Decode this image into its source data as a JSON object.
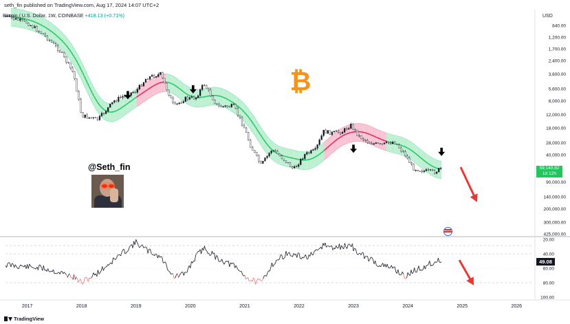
{
  "header": {
    "published": "seth_fin published on TradingView.com, Aug 17, 2024 14:07 UTC+2",
    "symbol": "Bitcoin / U.S. Dollar, 1W, COINBASE",
    "change": "+418.13 (+0.71%)"
  },
  "brand": "TradingView",
  "handle": "@Seth_fin",
  "colors": {
    "candle": "#131722",
    "band_green": "#22c55e",
    "band_green_fill": "#bdf0d2",
    "band_red": "#e0245e",
    "band_red_fill": "#f8c3d3",
    "bitcoin": "#f7931a",
    "arrow_red": "#e53935",
    "rsi_line": "#131722",
    "rsi_low": "#e57373",
    "price_label": "#22c55e"
  },
  "icons": [
    "bitcoin-logo-icon",
    "down-arrow-icon",
    "red-forecast-arrow-icon",
    "flag-icon",
    "tradingview-logo-icon"
  ],
  "chart_data": [
    {
      "type": "line",
      "title": "",
      "xlabel": "",
      "ylabel": "USD",
      "y_inverted": true,
      "y_scale": "log",
      "ylim": [
        425000,
        700
      ],
      "x_ticks": [
        "2017",
        "2018",
        "2019",
        "2020",
        "2021",
        "2022",
        "2023",
        "2024",
        "2025",
        "2026"
      ],
      "y_ticks": [
        "840.00",
        "1,200.00",
        "1,700.00",
        "2,400.00",
        "3,600.00",
        "5,600.00",
        "8,000.00",
        "12,000.00",
        "18,000.00",
        "28,000.00",
        "40,000.00",
        "59,140.82",
        "90,000.00",
        "140,000.00",
        "200,000.00",
        "300,000.00",
        "425,000.00"
      ],
      "price_label": "59,140.82",
      "price_sublabel": "1d 12h",
      "series": [
        {
          "name": "",
          "x": [
            2016.6,
            2017.0,
            2017.3,
            2017.6,
            2017.85,
            2018.0,
            2018.3,
            2018.6,
            2018.85,
            2019.0,
            2019.2,
            2019.45,
            2019.7,
            2019.9,
            2020.1,
            2020.25,
            2020.5,
            2020.8,
            2021.0,
            2021.1,
            2021.3,
            2021.5,
            2021.75,
            2021.9,
            2022.1,
            2022.3,
            2022.45,
            2022.6,
            2022.8,
            2022.95,
            2023.1,
            2023.3,
            2023.5,
            2023.75,
            2023.95,
            2024.1,
            2024.3,
            2024.5,
            2024.62
          ],
          "values": [
            640,
            780,
            1100,
            1800,
            3500,
            12500,
            14000,
            8000,
            6500,
            6000,
            4000,
            3600,
            9500,
            7500,
            7300,
            4800,
            9500,
            9400,
            18500,
            30000,
            55000,
            34000,
            48000,
            62000,
            40000,
            35000,
            20000,
            21000,
            20000,
            16500,
            23000,
            28000,
            30000,
            27000,
            40000,
            60000,
            65000,
            67000,
            59140
          ]
        }
      ]
    },
    {
      "type": "line",
      "title": "",
      "ylim": [
        100,
        20
      ],
      "y_ticks": [
        "20.00",
        "40.00",
        "60.00",
        "80.00",
        "100.00"
      ],
      "value_label": "49.08",
      "series": [
        {
          "name": "",
          "x": [
            2016.6,
            2017.0,
            2017.3,
            2017.6,
            2017.85,
            2018.0,
            2018.3,
            2018.6,
            2018.85,
            2019.0,
            2019.2,
            2019.45,
            2019.7,
            2019.9,
            2020.1,
            2020.25,
            2020.5,
            2020.8,
            2021.0,
            2021.1,
            2021.3,
            2021.5,
            2021.75,
            2021.9,
            2022.1,
            2022.3,
            2022.45,
            2022.6,
            2022.8,
            2022.95,
            2023.1,
            2023.3,
            2023.5,
            2023.75,
            2023.95,
            2024.1,
            2024.3,
            2024.5,
            2024.62
          ],
          "values": [
            55,
            58,
            60,
            66,
            72,
            80,
            66,
            48,
            33,
            24,
            35,
            44,
            72,
            68,
            44,
            32,
            46,
            57,
            70,
            76,
            80,
            55,
            40,
            42,
            45,
            40,
            27,
            32,
            30,
            28,
            40,
            47,
            56,
            60,
            72,
            64,
            58,
            50,
            49
          ]
        }
      ]
    }
  ]
}
